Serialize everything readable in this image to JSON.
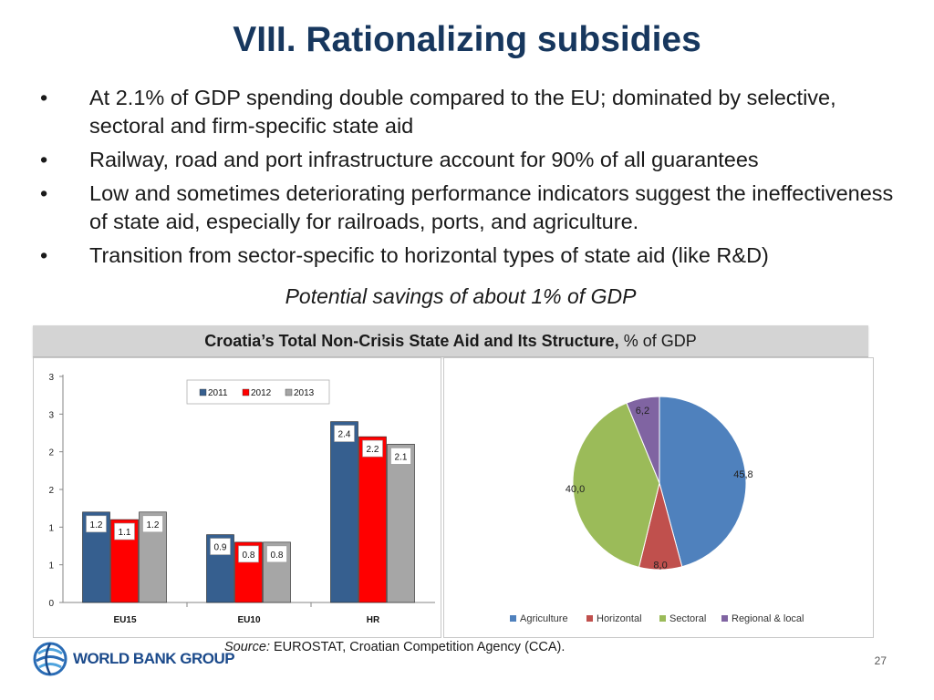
{
  "slide": {
    "title": "VIII. Rationalizing subsidies",
    "bullets": [
      "At 2.1% of GDP spending double compared to the EU; dominated by selective, sectoral and firm-specific state aid",
      "Railway, road and port infrastructure account for 90% of all guarantees",
      "Low and sometimes deteriorating performance indicators suggest the ineffectiveness of state aid, especially for railroads, ports, and agriculture.",
      "Transition from sector-specific to horizontal types of state aid (like R&D)"
    ],
    "bullet_symbol": "•",
    "tagline": "Potential savings of about 1% of GDP",
    "banner_bold": "Croatia’s Total Non-Crisis State Aid and Its Structure,",
    "banner_rest": " % of GDP",
    "source_label": "Source:",
    "source_text": " EUROSTAT, Croatian Competition Agency (CCA).",
    "logo_text": "WORLD BANK GROUP",
    "page_number": "27"
  },
  "chart_data": [
    {
      "type": "bar",
      "title": "",
      "categories": [
        "EU15",
        "EU10",
        "HR"
      ],
      "series": [
        {
          "name": "2011",
          "values": [
            1.2,
            0.9,
            2.4
          ],
          "labels": [
            "1.2",
            "0.9",
            "2.4"
          ],
          "color": "#365f8f"
        },
        {
          "name": "2012",
          "values": [
            1.1,
            0.8,
            2.2
          ],
          "labels": [
            "1.1",
            "0.8",
            "2.2"
          ],
          "color": "#ff0000"
        },
        {
          "name": "2013",
          "values": [
            1.2,
            0.8,
            2.1
          ],
          "labels": [
            "1.2",
            "0.8",
            "2.1"
          ],
          "color": "#a6a6a6"
        }
      ],
      "y_ticks": [
        "0",
        "1",
        "1",
        "2",
        "2",
        "3",
        "3"
      ],
      "ylim": [
        0,
        3
      ],
      "legend_position": "top-center",
      "grid": false
    },
    {
      "type": "pie",
      "title": "",
      "slices": [
        {
          "name": "Agriculture",
          "value": 45.8,
          "label": "45,8",
          "color": "#4f81bd"
        },
        {
          "name": "Horizontal",
          "value": 8.0,
          "label": "8,0",
          "color": "#c0504d"
        },
        {
          "name": "Sectoral",
          "value": 40.0,
          "label": "40,0",
          "color": "#9bbb59"
        },
        {
          "name": "Regional & local",
          "value": 6.2,
          "label": "6,2",
          "color": "#8064a2"
        }
      ],
      "start_angle_deg": 0,
      "direction": "clockwise",
      "legend_position": "bottom"
    }
  ]
}
